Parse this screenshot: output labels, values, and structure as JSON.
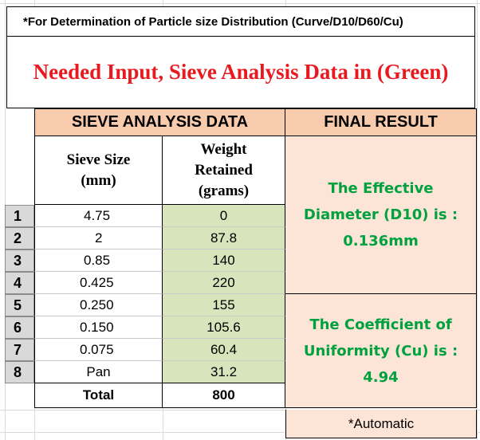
{
  "note": "*For Determination of Particle size Distribution (Curve/D10/D60/Cu)",
  "title": "Needed Input, Sieve Analysis Data in (Green)",
  "sieve_header": "SIEVE ANALYSIS DATA",
  "result_header": "FINAL RESULT",
  "col_sieve": [
    "Sieve Size",
    "(mm)"
  ],
  "col_weight": [
    "Weight",
    "Retained",
    "(grams)"
  ],
  "rows": [
    {
      "num": "1",
      "size": "4.75",
      "weight": "0"
    },
    {
      "num": "2",
      "size": "2",
      "weight": "87.8"
    },
    {
      "num": "3",
      "size": "0.85",
      "weight": "140"
    },
    {
      "num": "4",
      "size": "0.425",
      "weight": "220"
    },
    {
      "num": "5",
      "size": "0.250",
      "weight": "155"
    },
    {
      "num": "6",
      "size": "0.150",
      "weight": "105.6"
    },
    {
      "num": "7",
      "size": "0.075",
      "weight": "60.4"
    },
    {
      "num": "8",
      "size": "Pan",
      "weight": "31.2"
    }
  ],
  "total_label": "Total",
  "total_value": "800",
  "result_d10": [
    "The Effective",
    "Diameter (D10) is :",
    "0.136mm"
  ],
  "result_cu": [
    "The Coefficient of",
    "Uniformity (Cu) is :",
    "4.94"
  ],
  "automatic": "*Automatic",
  "colors": {
    "green_input": "#d8e4bc",
    "peach": "#f8cbad",
    "light_peach": "#fce4d6",
    "result_green": "#00a13f",
    "title_red": "#e8191f"
  }
}
